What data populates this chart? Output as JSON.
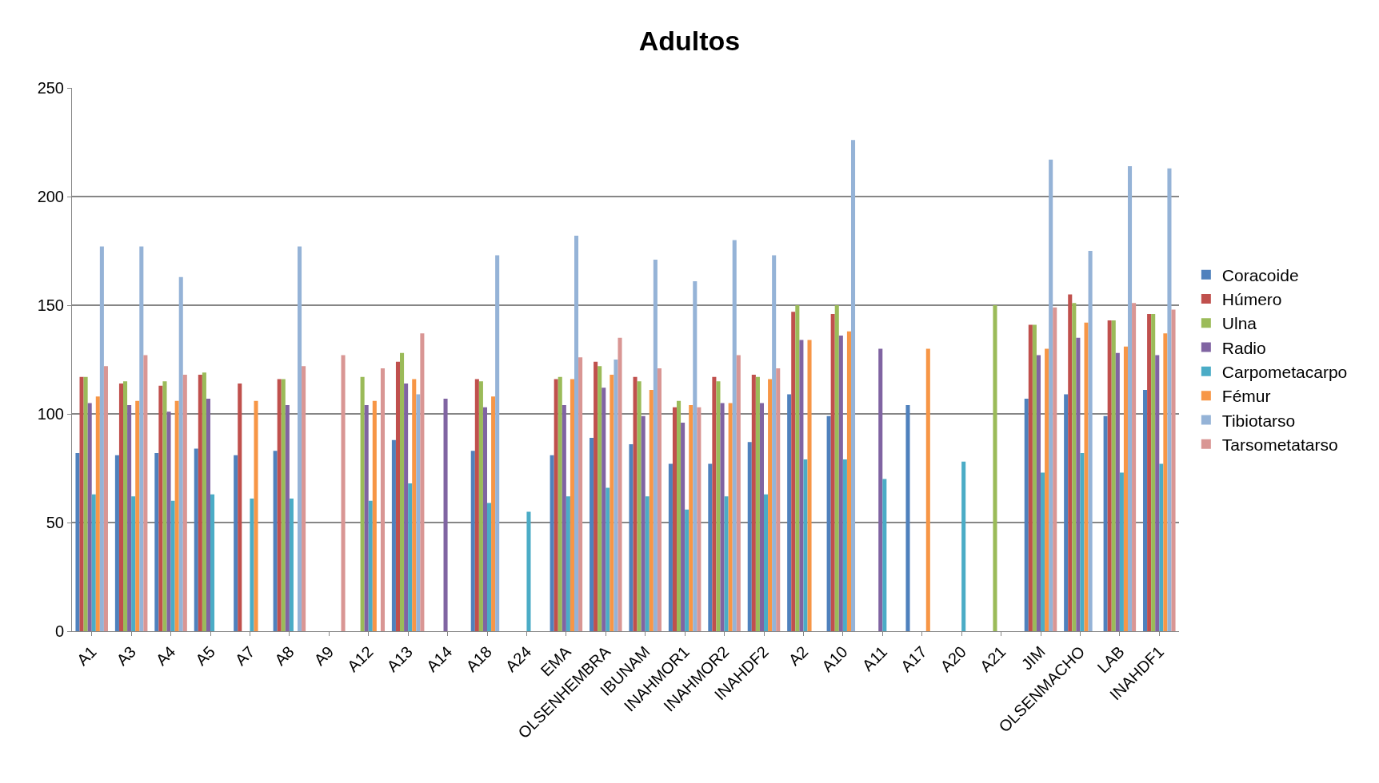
{
  "chart_data": {
    "type": "bar",
    "title": "Adultos",
    "categories": [
      "A1",
      "A3",
      "A4",
      "A5",
      "A7",
      "A8",
      "A9",
      "A12",
      "A13",
      "A14",
      "A18",
      "A24",
      "EMA",
      "OLSENHEMBRA",
      "IBUNAM",
      "INAHMOR1",
      "INAHMOR2",
      "INAHDF2",
      "A2",
      "A10",
      "A11",
      "A17",
      "A20",
      "A21",
      "JIM",
      "OLSENMACHO",
      "LAB",
      "INAHDF1"
    ],
    "series": [
      {
        "name": "Coracoide",
        "color": "#4f81bd",
        "values": [
          82,
          81,
          82,
          84,
          81,
          83,
          null,
          null,
          88,
          null,
          83,
          null,
          81,
          89,
          86,
          77,
          77,
          87,
          109,
          99,
          null,
          104,
          null,
          null,
          107,
          109,
          99,
          111
        ]
      },
      {
        "name": "Húmero",
        "color": "#c0504d",
        "values": [
          117,
          114,
          113,
          118,
          114,
          116,
          null,
          null,
          124,
          null,
          116,
          null,
          116,
          124,
          117,
          103,
          117,
          118,
          147,
          146,
          null,
          null,
          null,
          null,
          141,
          155,
          143,
          146
        ]
      },
      {
        "name": "Ulna",
        "color": "#9bbb59",
        "values": [
          117,
          115,
          115,
          119,
          null,
          116,
          null,
          117,
          128,
          null,
          115,
          null,
          117,
          122,
          115,
          106,
          115,
          117,
          150,
          150,
          null,
          null,
          null,
          150,
          141,
          151,
          143,
          146
        ]
      },
      {
        "name": "Radio",
        "color": "#8064a2",
        "values": [
          105,
          104,
          101,
          107,
          null,
          104,
          null,
          104,
          114,
          107,
          103,
          null,
          104,
          112,
          99,
          96,
          105,
          105,
          134,
          136,
          130,
          null,
          null,
          null,
          127,
          135,
          128,
          127
        ]
      },
      {
        "name": "Carpometacarpo",
        "color": "#4bacc6",
        "values": [
          63,
          62,
          60,
          63,
          61,
          61,
          null,
          60,
          68,
          null,
          59,
          55,
          62,
          66,
          62,
          56,
          62,
          63,
          79,
          79,
          70,
          null,
          78,
          null,
          73,
          82,
          73,
          77
        ]
      },
      {
        "name": "Fémur",
        "color": "#f79646",
        "values": [
          108,
          106,
          106,
          null,
          106,
          null,
          null,
          106,
          116,
          null,
          108,
          null,
          116,
          118,
          111,
          104,
          105,
          116,
          134,
          138,
          null,
          130,
          null,
          null,
          130,
          142,
          131,
          137
        ]
      },
      {
        "name": "Tibiotarso",
        "color": "#95b3d7",
        "values": [
          177,
          177,
          163,
          null,
          null,
          177,
          null,
          null,
          109,
          null,
          173,
          null,
          182,
          125,
          171,
          161,
          180,
          173,
          null,
          226,
          null,
          null,
          null,
          null,
          217,
          175,
          214,
          213
        ]
      },
      {
        "name": "Tarsometatarso",
        "color": "#d99694",
        "values": [
          122,
          127,
          118,
          null,
          null,
          122,
          127,
          121,
          137,
          null,
          null,
          null,
          126,
          135,
          121,
          103,
          127,
          121,
          null,
          null,
          null,
          null,
          null,
          null,
          149,
          null,
          151,
          148
        ]
      }
    ],
    "ylim": [
      0,
      250
    ],
    "yticks": [
      0,
      50,
      100,
      150,
      200,
      250
    ],
    "grid": "y",
    "legend": "right"
  }
}
